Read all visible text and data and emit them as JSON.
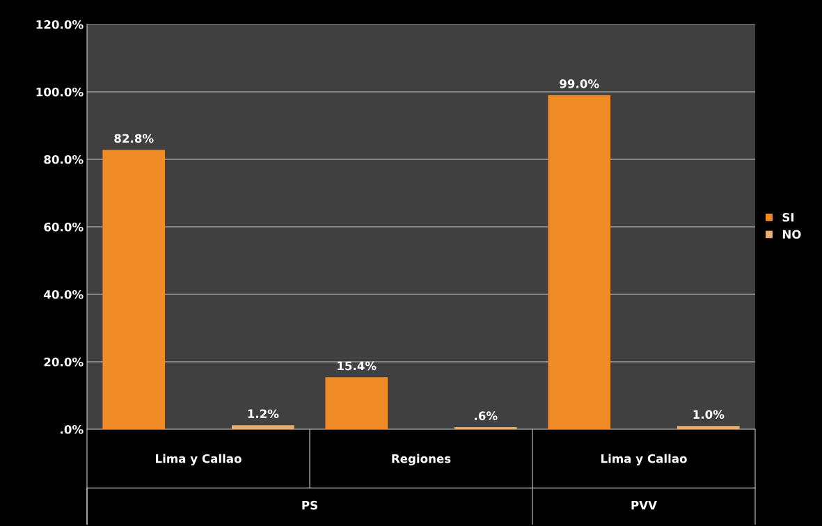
{
  "chart_data": {
    "type": "bar",
    "categories": [
      "Lima y Callao",
      "Regiones",
      "Lima y Callao"
    ],
    "series": [
      {
        "name": "SI",
        "color": "#f08c28",
        "values": [
          82.8,
          15.4,
          99.0
        ],
        "value_labels": [
          "82.8%",
          "15.4%",
          "99.0%"
        ]
      },
      {
        "name": "NO",
        "color": "#e8b070",
        "values": [
          1.2,
          0.6,
          1.0
        ],
        "value_labels": [
          "1.2%",
          ".6%",
          "1.0%"
        ]
      }
    ],
    "ylim": [
      0,
      120
    ],
    "yticks": [
      {
        "value": 0,
        "label": ".0%"
      },
      {
        "value": 20,
        "label": "20.0%"
      },
      {
        "value": 40,
        "label": "40.0%"
      },
      {
        "value": 60,
        "label": "60.0%"
      },
      {
        "value": 80,
        "label": "80.0%"
      },
      {
        "value": 100,
        "label": "100.0%"
      },
      {
        "value": 120,
        "label": "120.0%"
      }
    ],
    "grid": "y",
    "legend": "right",
    "annotations": [
      "PS",
      "PVV"
    ]
  }
}
